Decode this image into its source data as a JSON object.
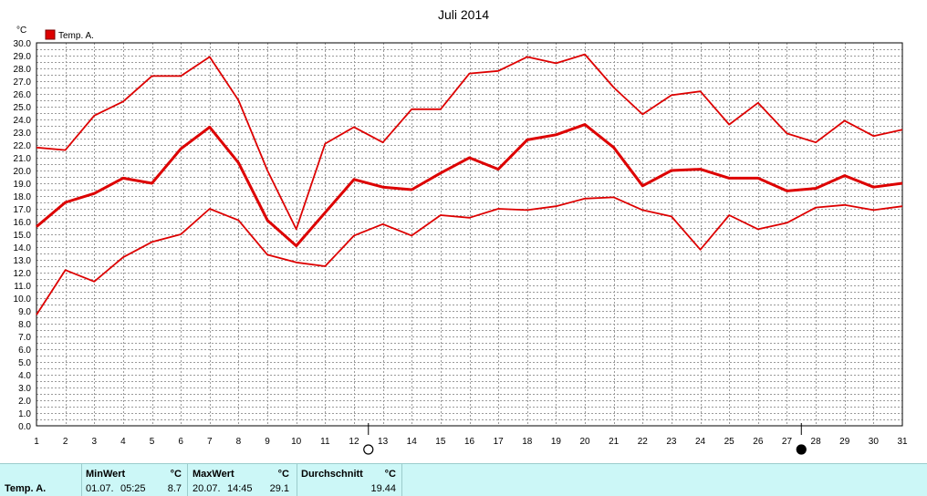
{
  "chart_data": {
    "type": "line",
    "title": "Juli 2014",
    "ylabel": "°C",
    "ylim": [
      0,
      30
    ],
    "ystep": 0.5,
    "yticks": [
      "0.0",
      "1.0",
      "2.0",
      "3.0",
      "4.0",
      "5.0",
      "6.0",
      "7.0",
      "8.0",
      "9.0",
      "10.0",
      "11.0",
      "12.0",
      "13.0",
      "14.0",
      "15.0",
      "16.0",
      "17.0",
      "18.0",
      "19.0",
      "20.0",
      "21.0",
      "22.0",
      "23.0",
      "24.0",
      "25.0",
      "26.0",
      "27.0",
      "28.0",
      "29.0",
      "30.0"
    ],
    "x": [
      1,
      2,
      3,
      4,
      5,
      6,
      7,
      8,
      9,
      10,
      11,
      12,
      13,
      14,
      15,
      16,
      17,
      18,
      19,
      20,
      21,
      22,
      23,
      24,
      25,
      26,
      27,
      28,
      29,
      30,
      31
    ],
    "grid": true,
    "legend": {
      "position": "top-left",
      "label": "Temp. A.",
      "color": "#dd0000"
    },
    "series": [
      {
        "name": "Temp. A.",
        "role": "max",
        "color": "#dd0000",
        "values": [
          21.8,
          21.6,
          24.3,
          25.4,
          27.4,
          27.4,
          28.9,
          25.5,
          20.0,
          15.4,
          22.1,
          23.4,
          22.2,
          24.8,
          24.8,
          27.6,
          27.8,
          28.9,
          28.4,
          29.1,
          26.5,
          24.4,
          25.9,
          26.2,
          23.6,
          25.3,
          22.9,
          22.2,
          23.9,
          22.7,
          23.2
        ]
      },
      {
        "name": "Temp. A.",
        "role": "mean",
        "color": "#dd0000",
        "values": [
          15.6,
          17.5,
          18.2,
          19.4,
          19.0,
          21.7,
          23.4,
          20.6,
          16.1,
          14.1,
          16.7,
          19.3,
          18.7,
          18.5,
          19.8,
          21.0,
          20.1,
          22.4,
          22.8,
          23.6,
          21.8,
          18.8,
          20.0,
          20.1,
          19.4,
          19.4,
          18.4,
          18.6,
          19.6,
          18.7,
          19.0
        ]
      },
      {
        "name": "Temp. A.",
        "role": "min",
        "color": "#dd0000",
        "values": [
          8.7,
          12.2,
          11.3,
          13.2,
          14.4,
          15.0,
          17.0,
          16.1,
          13.4,
          12.8,
          12.5,
          14.9,
          15.8,
          14.9,
          16.5,
          16.3,
          17.0,
          16.9,
          17.2,
          17.8,
          17.9,
          16.9,
          16.4,
          13.8,
          16.5,
          15.4,
          15.9,
          17.1,
          17.3,
          16.9,
          17.2
        ]
      }
    ],
    "moon_phases": [
      {
        "day": 12,
        "symbol": "full-moon"
      },
      {
        "day": 27,
        "symbol": "new-moon"
      }
    ]
  },
  "stats": {
    "row_label": "Temp. A.",
    "min": {
      "header": "MinWert",
      "unit": "°C",
      "date": "01.07.",
      "time": "05:25",
      "value": "8.7"
    },
    "max": {
      "header": "MaxWert",
      "unit": "°C",
      "date": "20.07.",
      "time": "14:45",
      "value": "29.1"
    },
    "avg": {
      "header": "Durchschnitt",
      "unit": "°C",
      "value": "19.44"
    }
  }
}
